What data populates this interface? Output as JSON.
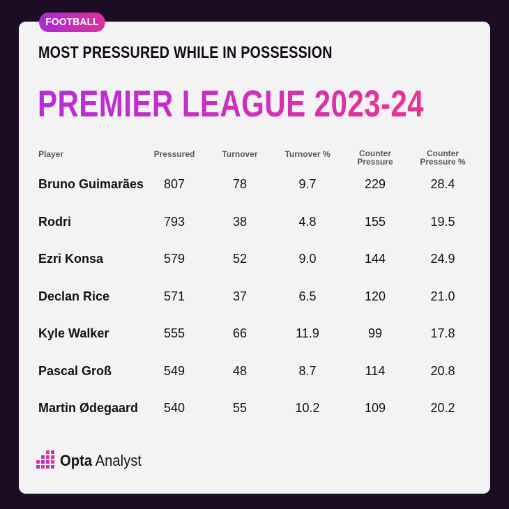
{
  "tag": "FOOTBALL",
  "subtitle": "MOST PRESSURED WHILE IN POSSESSION",
  "title": "PREMIER LEAGUE 2023-24",
  "brand": {
    "bold": "Opta",
    "light": " Analyst"
  },
  "colors": {
    "accent_start": "#a72bd6",
    "accent_end": "#e9348e",
    "background": "#1c0c24",
    "card": "#f4f3f4"
  },
  "chart_data": {
    "type": "table",
    "columns": [
      "Player",
      "Pressured",
      "Turnover",
      "Turnover %",
      "Counter Pressure",
      "Counter Pressure %"
    ],
    "header_lines": [
      [
        "Player"
      ],
      [
        "Pressured"
      ],
      [
        "Turnover"
      ],
      [
        "Turnover %"
      ],
      [
        "Counter",
        "Pressure"
      ],
      [
        "Counter",
        "Pressure %"
      ]
    ],
    "rows": [
      [
        "Bruno Guimarães",
        "807",
        "78",
        "9.7",
        "229",
        "28.4"
      ],
      [
        "Rodri",
        "793",
        "38",
        "4.8",
        "155",
        "19.5"
      ],
      [
        "Ezri Konsa",
        "579",
        "52",
        "9.0",
        "144",
        "24.9"
      ],
      [
        "Declan Rice",
        "571",
        "37",
        "6.5",
        "120",
        "21.0"
      ],
      [
        "Kyle Walker",
        "555",
        "66",
        "11.9",
        "99",
        "17.8"
      ],
      [
        "Pascal Groß",
        "549",
        "48",
        "8.7",
        "114",
        "20.8"
      ],
      [
        "Martin Ødegaard",
        "540",
        "55",
        "10.2",
        "109",
        "20.2"
      ]
    ]
  }
}
